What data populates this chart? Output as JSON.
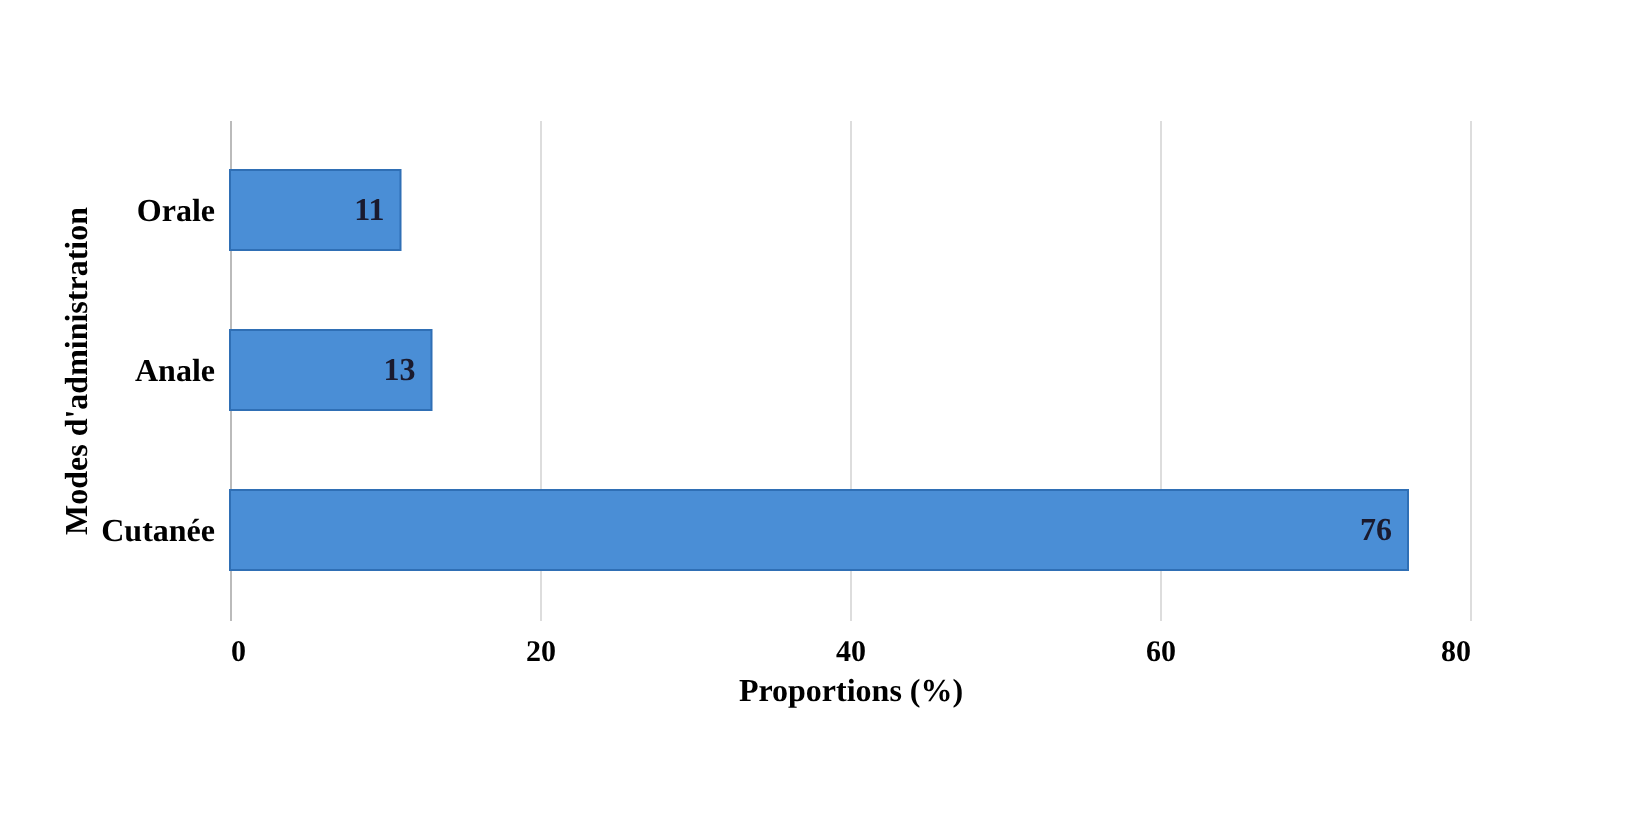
{
  "chart_data": {
    "type": "bar",
    "orientation": "horizontal",
    "categories": [
      "Orale",
      "Anale",
      "Cutanée"
    ],
    "values": [
      11,
      13,
      76
    ],
    "color": "#4a8ed6",
    "xlabel": "Proportions (%)",
    "ylabel": "Modes d'administration",
    "xlim": [
      0,
      80
    ],
    "xticks": [
      0,
      20,
      40,
      60,
      80
    ],
    "grid": "x",
    "data_labels": true
  }
}
